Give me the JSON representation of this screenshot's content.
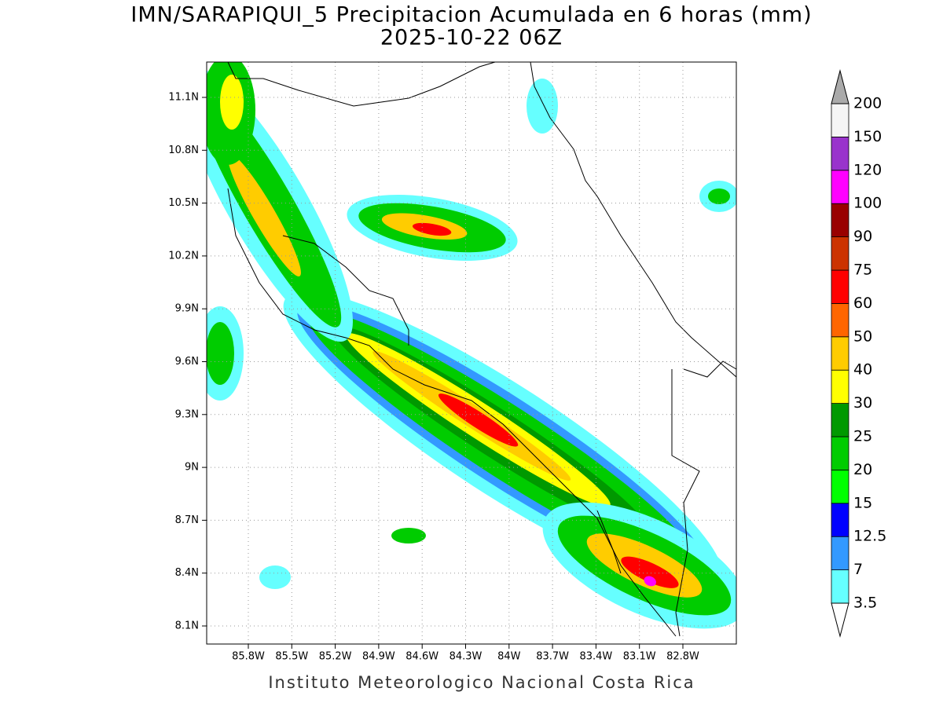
{
  "header": {
    "title": "IMN/SARAPIQUI_5 Precipitacion Acumulada en 6 horas (mm)",
    "subtitle": "2025-10-22 06Z"
  },
  "map": {
    "lon_ticks": [
      "85.8W",
      "85.5W",
      "85.2W",
      "84.9W",
      "84.6W",
      "84.3W",
      "84W",
      "83.7W",
      "83.4W",
      "83.1W",
      "82.8W"
    ],
    "lat_ticks": [
      "11.1N",
      "10.8N",
      "10.5N",
      "10.2N",
      "9.9N",
      "9.6N",
      "9.3N",
      "9N",
      "8.7N",
      "8.4N",
      "8.1N"
    ]
  },
  "colorbar": {
    "levels": [
      3.5,
      7,
      12.5,
      15,
      20,
      25,
      30,
      40,
      50,
      60,
      75,
      90,
      100,
      120,
      150,
      200
    ],
    "colors": [
      "#66ffff",
      "#3399ff",
      "#0000ff",
      "#00ff00",
      "#00cc00",
      "#009900",
      "#ffff00",
      "#ffcc00",
      "#ff6600",
      "#ff0000",
      "#cc3300",
      "#990000",
      "#ff00ff",
      "#9933cc",
      "#f5f5f5"
    ]
  },
  "footer": "Instituto Meteorologico Nacional Costa Rica"
}
